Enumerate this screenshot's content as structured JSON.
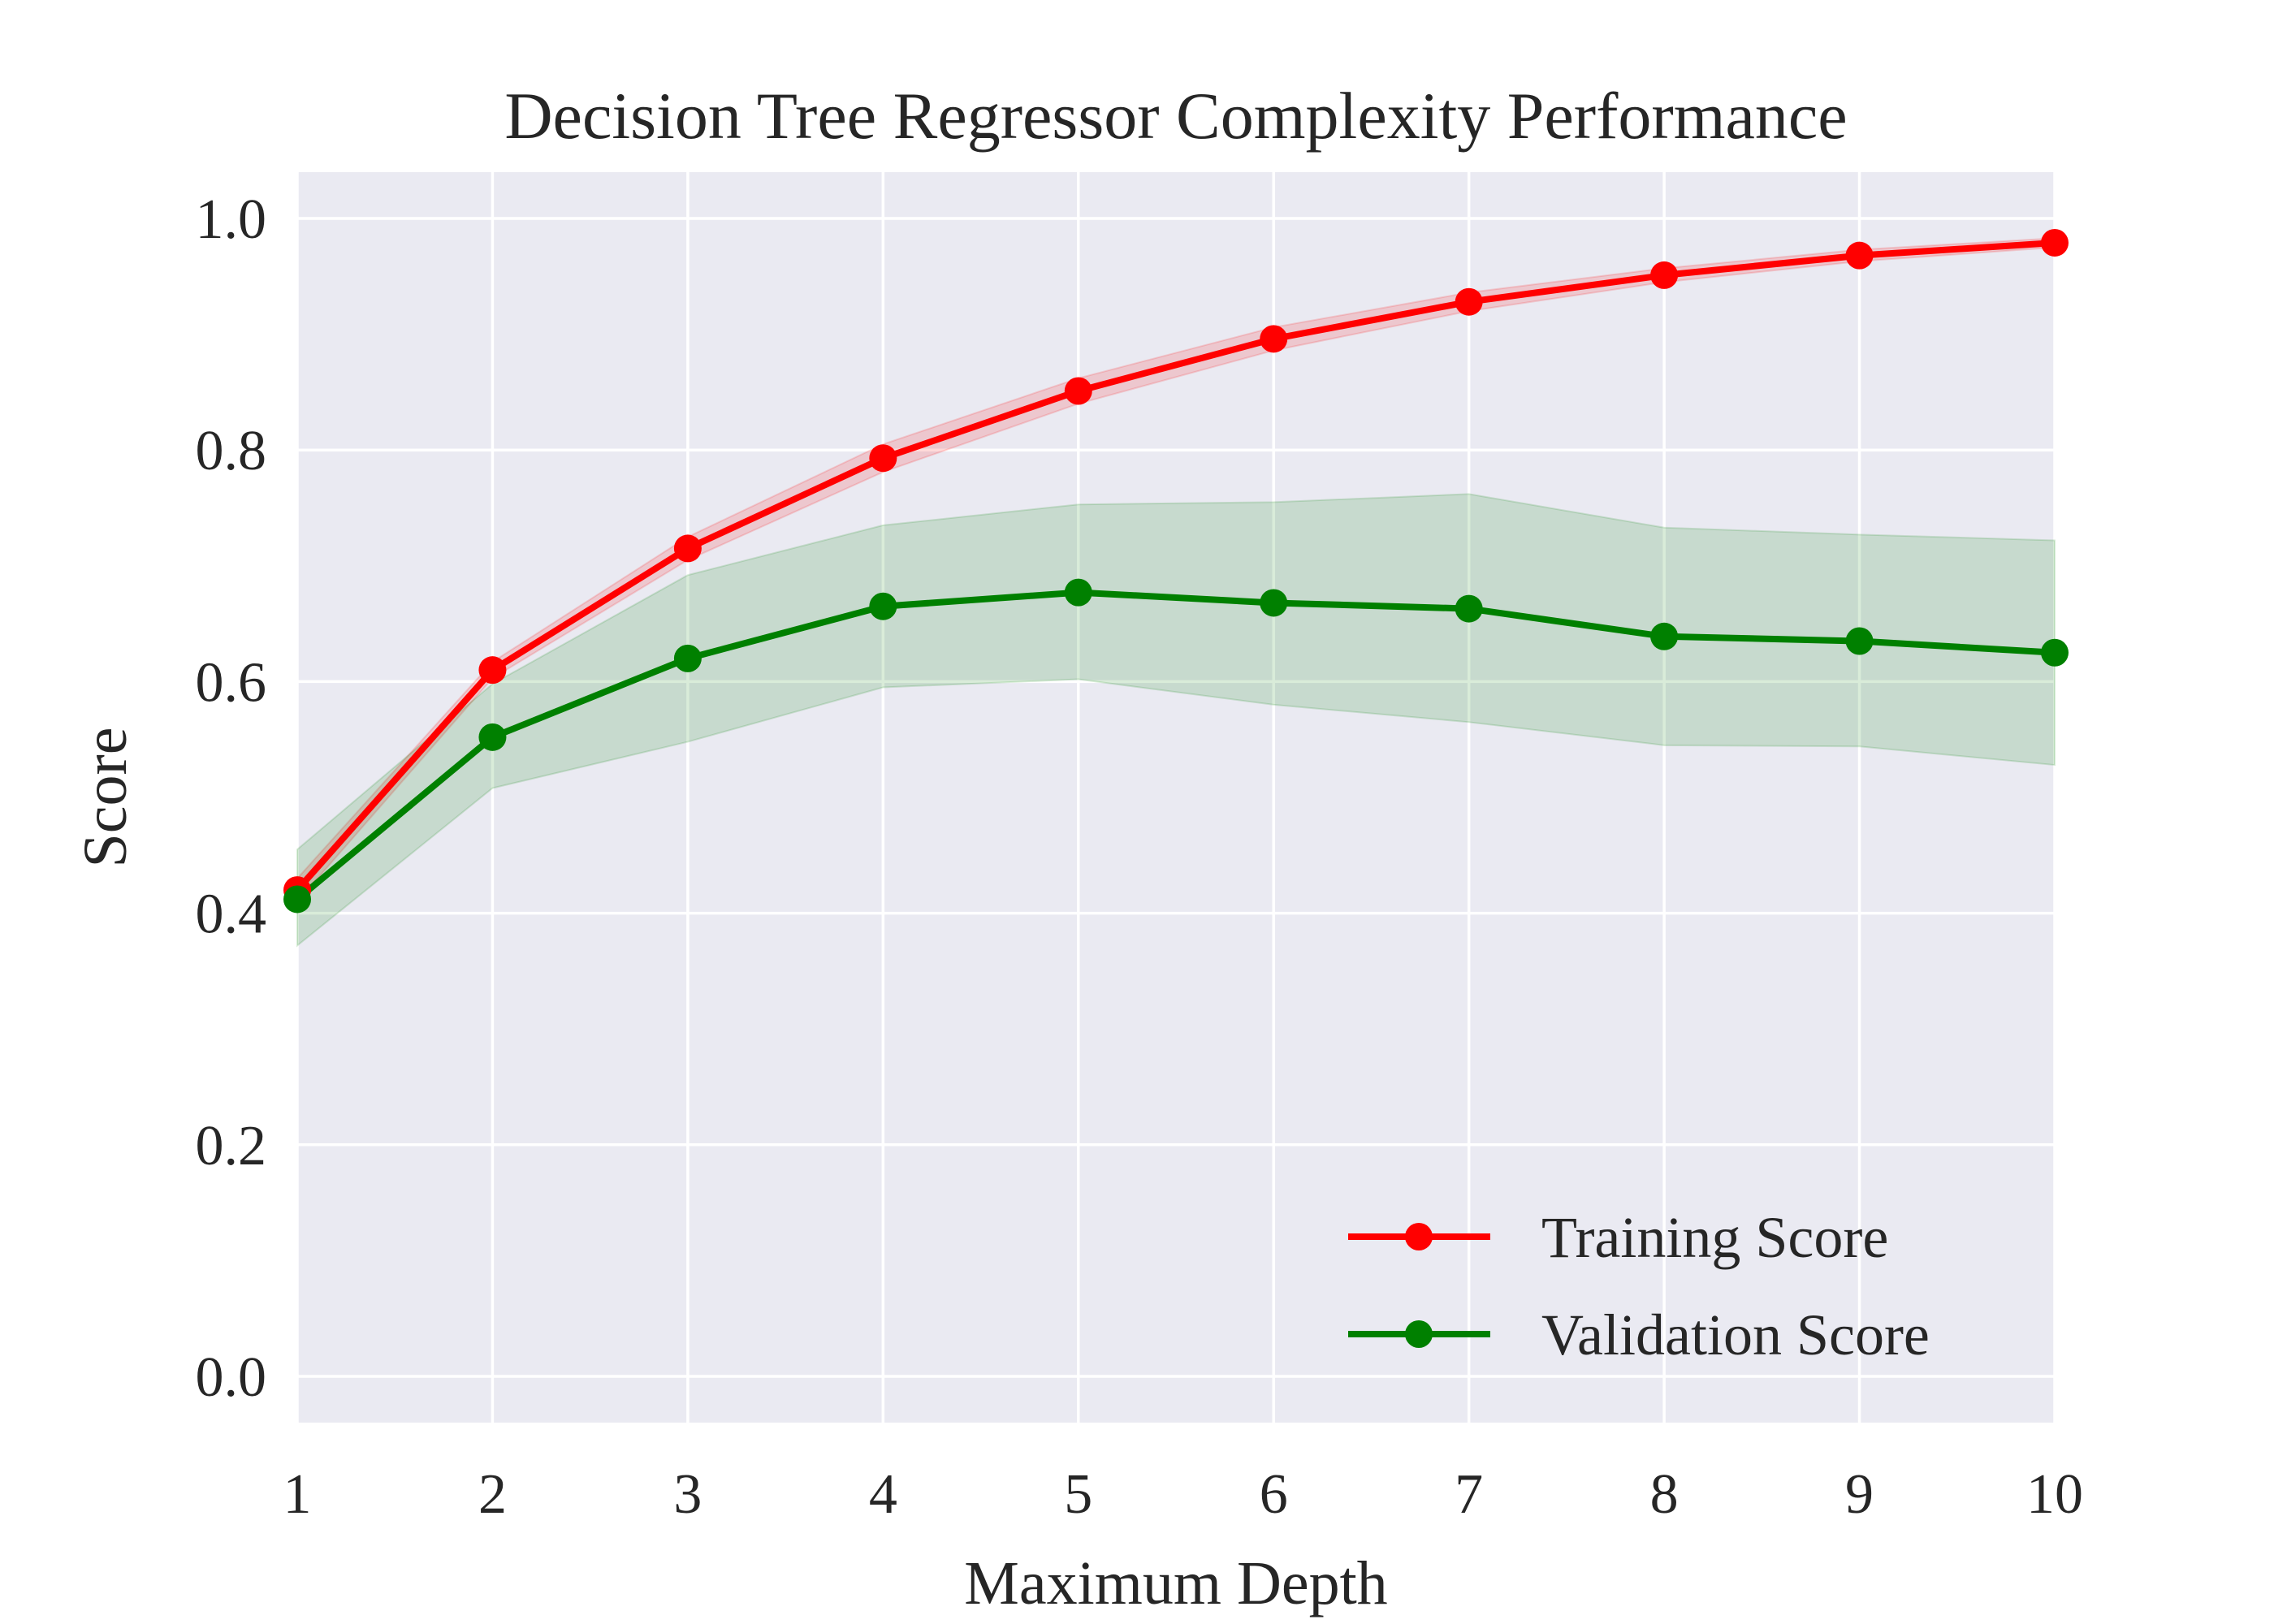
{
  "chart_data": {
    "type": "line",
    "title": "Decision Tree Regressor Complexity Performance",
    "xlabel": "Maximum Depth",
    "ylabel": "Score",
    "xlim": [
      1,
      10
    ],
    "ylim": [
      -0.04,
      1.04
    ],
    "xticks": [
      "1",
      "2",
      "3",
      "4",
      "5",
      "6",
      "7",
      "8",
      "9",
      "10"
    ],
    "yticks": [
      "0.0",
      "0.2",
      "0.4",
      "0.6",
      "0.8",
      "1.0"
    ],
    "grid": true,
    "legend_position": "lower-right",
    "x": [
      1,
      2,
      3,
      4,
      5,
      6,
      7,
      8,
      9,
      10
    ],
    "series": [
      {
        "name": "Training Score",
        "color": "#ff0000",
        "band_color": "#ff0000",
        "values": [
          0.42,
          0.61,
          0.715,
          0.793,
          0.851,
          0.896,
          0.928,
          0.951,
          0.968,
          0.979
        ],
        "band_upper": [
          0.43,
          0.617,
          0.725,
          0.805,
          0.862,
          0.906,
          0.936,
          0.957,
          0.973,
          0.983
        ],
        "band_lower": [
          0.41,
          0.603,
          0.705,
          0.781,
          0.84,
          0.886,
          0.92,
          0.945,
          0.963,
          0.975
        ]
      },
      {
        "name": "Validation Score",
        "color": "#008000",
        "band_color": "#008000",
        "values": [
          0.412,
          0.552,
          0.62,
          0.665,
          0.677,
          0.668,
          0.663,
          0.639,
          0.635,
          0.625
        ],
        "band_upper": [
          0.455,
          0.598,
          0.692,
          0.735,
          0.753,
          0.755,
          0.762,
          0.733,
          0.727,
          0.722
        ],
        "band_lower": [
          0.372,
          0.508,
          0.548,
          0.595,
          0.602,
          0.58,
          0.565,
          0.545,
          0.544,
          0.528
        ]
      }
    ]
  },
  "colors": {
    "plot_background": "#eaeaf2",
    "grid": "#ffffff"
  }
}
